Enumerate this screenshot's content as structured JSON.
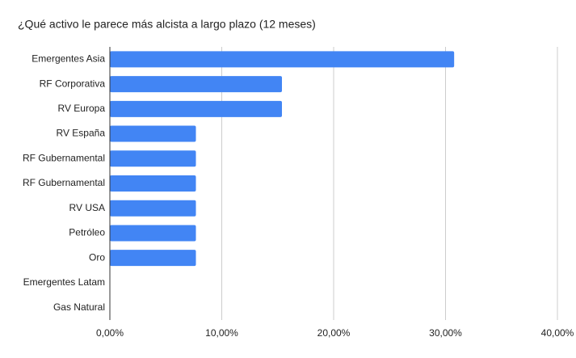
{
  "chart_data": {
    "type": "bar",
    "orientation": "horizontal",
    "title": "¿Qué activo le parece más alcista a largo plazo (12 meses)",
    "categories": [
      "Emergentes Asia",
      "RF Corporativa",
      "RV Europa",
      "RV España",
      "RF Gubernamental",
      "RF Gubernamental",
      "RV USA",
      "Petróleo",
      "Oro",
      "Emergentes Latam",
      "Gas Natural"
    ],
    "values": [
      30.77,
      15.38,
      15.38,
      7.69,
      7.69,
      7.69,
      7.69,
      7.69,
      7.69,
      0,
      0
    ],
    "color": "#4285f4",
    "xlim": [
      0,
      40
    ],
    "xticks": [
      {
        "value": 0,
        "label": "0,00%"
      },
      {
        "value": 10,
        "label": "10,00%"
      },
      {
        "value": 20,
        "label": "20,00%"
      },
      {
        "value": 30,
        "label": "30,00%"
      },
      {
        "value": 40,
        "label": "40,00%"
      }
    ],
    "grid": true
  }
}
